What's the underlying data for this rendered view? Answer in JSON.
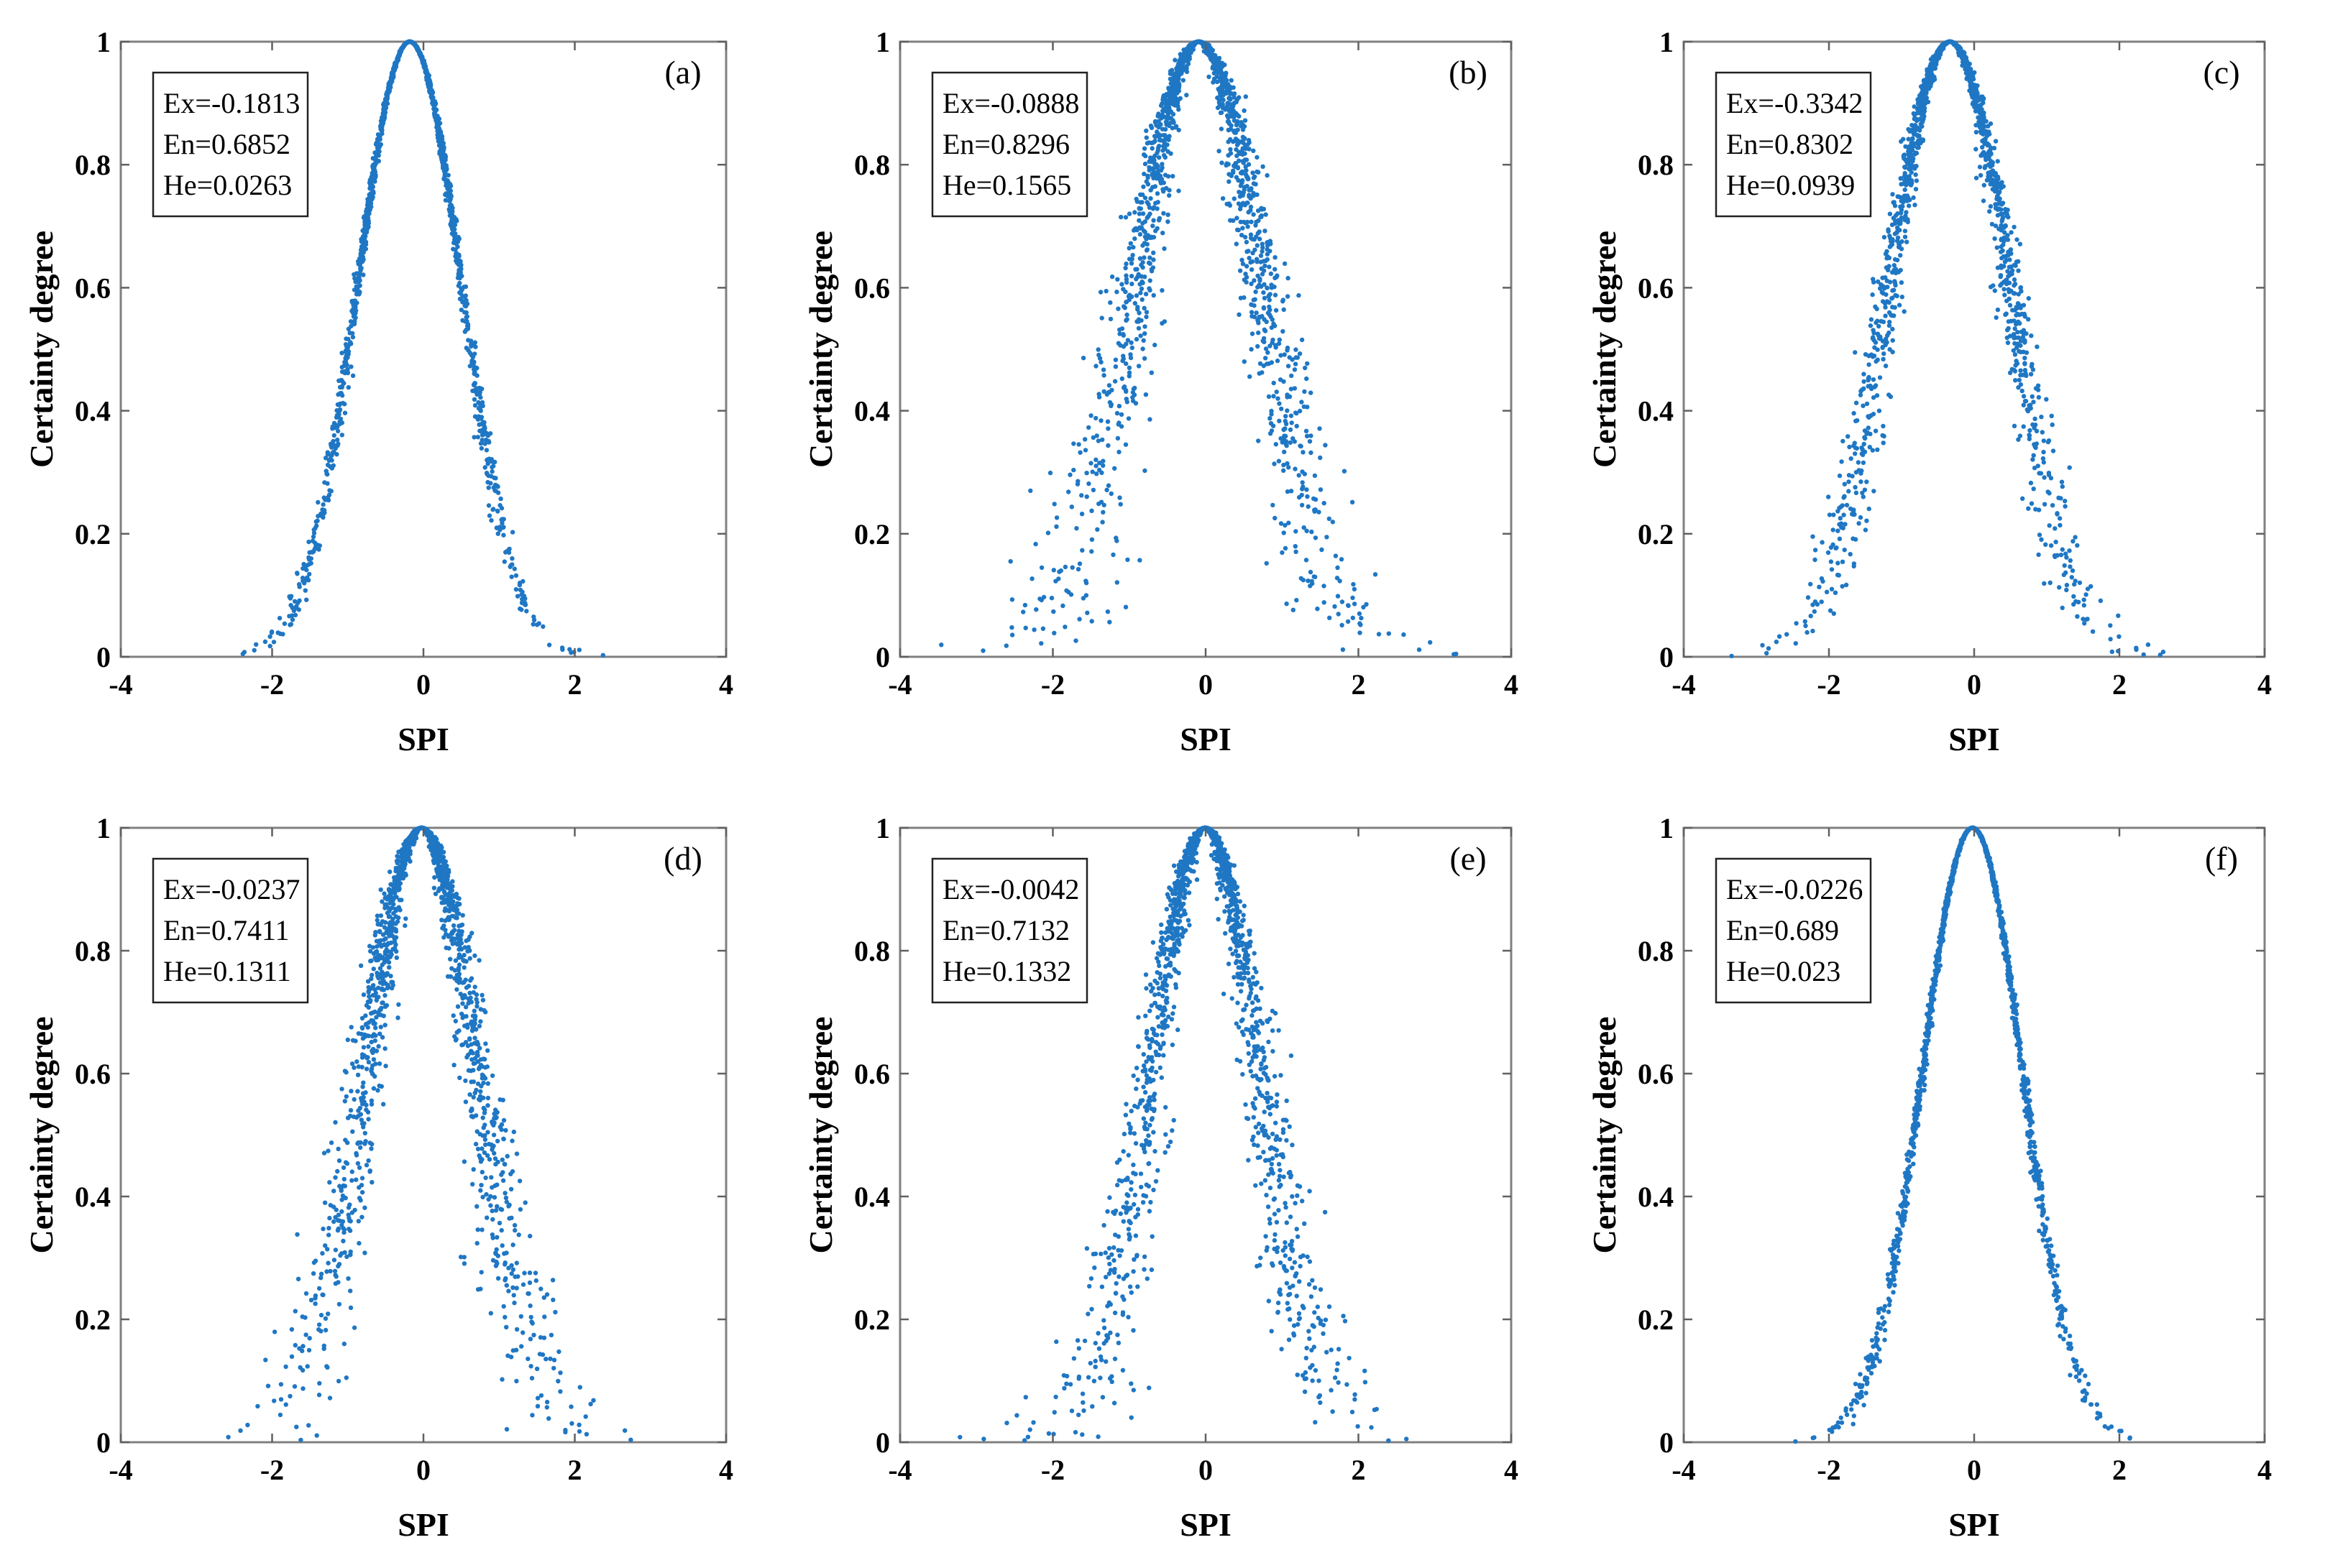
{
  "chart_data": [
    {
      "type": "scatter",
      "panel_label": "(a)",
      "xlabel": "SPI",
      "ylabel": "Certainty degree",
      "xlim": [
        -4,
        4
      ],
      "ylim": [
        0,
        1
      ],
      "xticks": [
        "-4",
        "-2",
        "0",
        "2",
        "4"
      ],
      "yticks": [
        "0",
        "0.2",
        "0.4",
        "0.6",
        "0.8",
        "1"
      ],
      "parameters": {
        "ex": -0.1813,
        "en": 0.6852,
        "he": 0.0263
      },
      "parameter_text": [
        "Ex=-0.1813",
        "En=0.6852",
        "He=0.0263"
      ],
      "point_color": "#1f77c4",
      "n_points": 1600,
      "seed": 11
    },
    {
      "type": "scatter",
      "panel_label": "(b)",
      "xlabel": "SPI",
      "ylabel": "Certainty degree",
      "xlim": [
        -4,
        4
      ],
      "ylim": [
        0,
        1
      ],
      "xticks": [
        "-4",
        "-2",
        "0",
        "2",
        "4"
      ],
      "yticks": [
        "0",
        "0.2",
        "0.4",
        "0.6",
        "0.8",
        "1"
      ],
      "parameters": {
        "ex": -0.0888,
        "en": 0.8296,
        "he": 0.1565
      },
      "parameter_text": [
        "Ex=-0.0888",
        "En=0.8296",
        "He=0.1565"
      ],
      "point_color": "#1f77c4",
      "n_points": 1600,
      "seed": 23
    },
    {
      "type": "scatter",
      "panel_label": "(c)",
      "xlabel": "SPI",
      "ylabel": "Certainty degree",
      "xlim": [
        -4,
        4
      ],
      "ylim": [
        0,
        1
      ],
      "xticks": [
        "-4",
        "-2",
        "0",
        "2",
        "4"
      ],
      "yticks": [
        "0",
        "0.2",
        "0.4",
        "0.6",
        "0.8",
        "1"
      ],
      "parameters": {
        "ex": -0.3342,
        "en": 0.8302,
        "he": 0.0939
      },
      "parameter_text": [
        "Ex=-0.3342",
        "En=0.8302",
        "He=0.0939"
      ],
      "point_color": "#1f77c4",
      "n_points": 1600,
      "seed": 37
    },
    {
      "type": "scatter",
      "panel_label": "(d)",
      "xlabel": "SPI",
      "ylabel": "Certainty degree",
      "xlim": [
        -4,
        4
      ],
      "ylim": [
        0,
        1
      ],
      "xticks": [
        "-4",
        "-2",
        "0",
        "2",
        "4"
      ],
      "yticks": [
        "0",
        "0.2",
        "0.4",
        "0.6",
        "0.8",
        "1"
      ],
      "parameters": {
        "ex": -0.0237,
        "en": 0.7411,
        "he": 0.1311
      },
      "parameter_text": [
        "Ex=-0.0237",
        "En=0.7411",
        "He=0.1311"
      ],
      "point_color": "#1f77c4",
      "n_points": 1600,
      "seed": 41
    },
    {
      "type": "scatter",
      "panel_label": "(e)",
      "xlabel": "SPI",
      "ylabel": "Certainty degree",
      "xlim": [
        -4,
        4
      ],
      "ylim": [
        0,
        1
      ],
      "xticks": [
        "-4",
        "-2",
        "0",
        "2",
        "4"
      ],
      "yticks": [
        "0",
        "0.2",
        "0.4",
        "0.6",
        "0.8",
        "1"
      ],
      "parameters": {
        "ex": -0.0042,
        "en": 0.7132,
        "he": 0.1332
      },
      "parameter_text": [
        "Ex=-0.0042",
        "En=0.7132",
        "He=0.1332"
      ],
      "point_color": "#1f77c4",
      "n_points": 1600,
      "seed": 53
    },
    {
      "type": "scatter",
      "panel_label": "(f)",
      "xlabel": "SPI",
      "ylabel": "Certainty degree",
      "xlim": [
        -4,
        4
      ],
      "ylim": [
        0,
        1
      ],
      "xticks": [
        "-4",
        "-2",
        "0",
        "2",
        "4"
      ],
      "yticks": [
        "0",
        "0.2",
        "0.4",
        "0.6",
        "0.8",
        "1"
      ],
      "parameters": {
        "ex": -0.0226,
        "en": 0.689,
        "he": 0.023
      },
      "parameter_text": [
        "Ex=-0.0226",
        "En=0.689",
        "He=0.023"
      ],
      "point_color": "#1f77c4",
      "n_points": 1600,
      "seed": 67
    }
  ]
}
